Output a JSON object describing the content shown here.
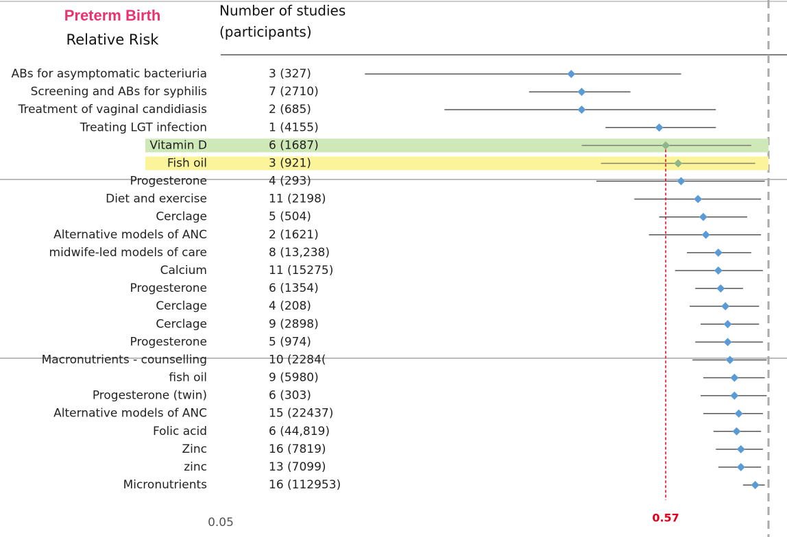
{
  "chart_data": {
    "type": "forest",
    "title": "Preterm Birth",
    "subtitle": "Relative Risk",
    "study_header": [
      "Number of studies",
      "(participants)"
    ],
    "log_scale": true,
    "xlim": [
      0.05,
      1
    ],
    "xticks": [
      0.05
    ],
    "null_value": 1,
    "reference_value": 0.57,
    "color": "#5b9bd5",
    "reference_color": "#e0001b",
    "rows": [
      {
        "label": "ABs for asymptomatic bacteriuria",
        "studies": "3 (327)",
        "estimate": 0.34,
        "low": 0.11,
        "high": 0.62
      },
      {
        "label": "Screening and ABs for syphilis",
        "studies": "7 (2710)",
        "estimate": 0.36,
        "low": 0.27,
        "high": 0.47
      },
      {
        "label": "Treatment of vaginal candidiasis",
        "studies": "2 (685)",
        "estimate": 0.36,
        "low": 0.17,
        "high": 0.75
      },
      {
        "label": "Treating LGT  infection",
        "studies": "1 (4155)",
        "estimate": 0.55,
        "low": 0.41,
        "high": 0.75
      },
      {
        "label": "Vitamin D",
        "studies": "6 (1687)",
        "estimate": 0.57,
        "low": 0.36,
        "high": 0.91,
        "highlight": "#cfe8b8"
      },
      {
        "label": "Fish oil",
        "studies": "3 (921)",
        "estimate": 0.61,
        "low": 0.4,
        "high": 0.93,
        "highlight": "#fbf49a"
      },
      {
        "label": "Progesterone",
        "studies": "4 (293)",
        "estimate": 0.62,
        "low": 0.39,
        "high": 0.98
      },
      {
        "label": "Diet and exercise",
        "studies": "11 (2198)",
        "estimate": 0.68,
        "low": 0.48,
        "high": 0.96
      },
      {
        "label": "Cerclage",
        "studies": "5 (504)",
        "estimate": 0.7,
        "low": 0.55,
        "high": 0.89
      },
      {
        "label": "Alternative models of ANC",
        "studies": "2 (1621)",
        "estimate": 0.71,
        "low": 0.52,
        "high": 0.96
      },
      {
        "label": "midwife-led models of care",
        "studies": "8 (13,238)",
        "estimate": 0.76,
        "low": 0.64,
        "high": 0.91
      },
      {
        "label": "Calcium",
        "studies": "11 (15275)",
        "estimate": 0.76,
        "low": 0.6,
        "high": 0.97
      },
      {
        "label": "Progesterone",
        "studies": "6 (1354)",
        "estimate": 0.77,
        "low": 0.67,
        "high": 0.87
      },
      {
        "label": "Cerclage",
        "studies": "4 (208)",
        "estimate": 0.79,
        "low": 0.65,
        "high": 0.95
      },
      {
        "label": "Cerclage",
        "studies": "9 (2898)",
        "estimate": 0.8,
        "low": 0.69,
        "high": 0.95
      },
      {
        "label": "Progesterone",
        "studies": "5 (974)",
        "estimate": 0.8,
        "low": 0.67,
        "high": 0.97
      },
      {
        "label": "Macronutrients - counselling",
        "studies": "10 (2284(",
        "estimate": 0.81,
        "low": 0.66,
        "high": 0.99
      },
      {
        "label": "fish oil",
        "studies": "9 (5980)",
        "estimate": 0.83,
        "low": 0.7,
        "high": 0.98
      },
      {
        "label": "Progesterone (twin)",
        "studies": "6 (303)",
        "estimate": 0.83,
        "low": 0.69,
        "high": 0.99
      },
      {
        "label": "Alternative models of ANC",
        "studies": "15 (22437)",
        "estimate": 0.85,
        "low": 0.7,
        "high": 0.97
      },
      {
        "label": "Folic acid",
        "studies": "6 (44,819)",
        "estimate": 0.84,
        "low": 0.74,
        "high": 0.96
      },
      {
        "label": "Zinc",
        "studies": "16 (7819)",
        "estimate": 0.86,
        "low": 0.75,
        "high": 0.97
      },
      {
        "label": "zinc",
        "studies": "13 (7099)",
        "estimate": 0.86,
        "low": 0.76,
        "high": 0.96
      },
      {
        "label": "Micronutrients",
        "studies": "16 (112953)",
        "estimate": 0.93,
        "low": 0.87,
        "high": 0.98
      }
    ]
  }
}
